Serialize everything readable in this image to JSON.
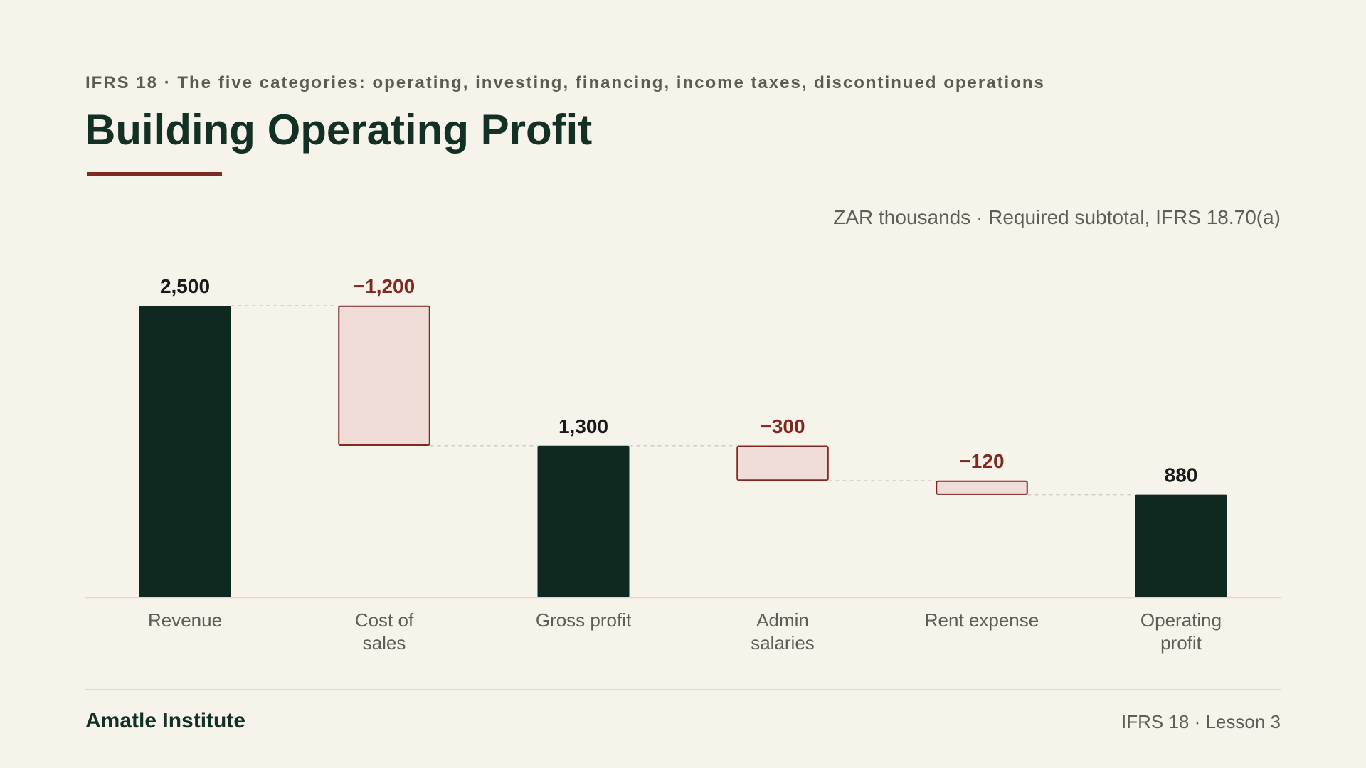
{
  "header": {
    "eyebrow": "IFRS 18 · The five categories: operating, investing, financing, income taxes, discontinued operations",
    "title": "Building Operating Profit"
  },
  "chart_data": {
    "type": "bar",
    "subtype": "waterfall",
    "units_note": "ZAR thousands · Required subtotal, IFRS 18.70(a)",
    "categories": [
      [
        "Revenue"
      ],
      [
        "Cost of",
        "sales"
      ],
      [
        "Gross profit"
      ],
      [
        "Admin",
        "salaries"
      ],
      [
        "Rent expense"
      ],
      [
        "Operating",
        "profit"
      ]
    ],
    "values": [
      2500,
      -1200,
      1300,
      -300,
      -120,
      880
    ],
    "kinds": [
      "total",
      "decrease",
      "total",
      "decrease",
      "decrease",
      "total"
    ],
    "value_labels": [
      "2,500",
      "−1,200",
      "1,300",
      "−300",
      "−120",
      "880"
    ],
    "ylim": [
      0,
      2500
    ],
    "grid": false,
    "connectors": true,
    "colors": {
      "total_fill": "#0f2820",
      "decrease_fill": "#f0ddd8",
      "decrease_stroke": "#7e2a22",
      "total_label": "#1a1a1a",
      "decrease_label": "#7e2a22",
      "category_label": "#5d5f56",
      "baseline": "#dcd9cf",
      "connector": "#cfccc2"
    }
  },
  "footer": {
    "brand": "Amatle Institute",
    "lesson": "IFRS 18 · Lesson 3"
  }
}
